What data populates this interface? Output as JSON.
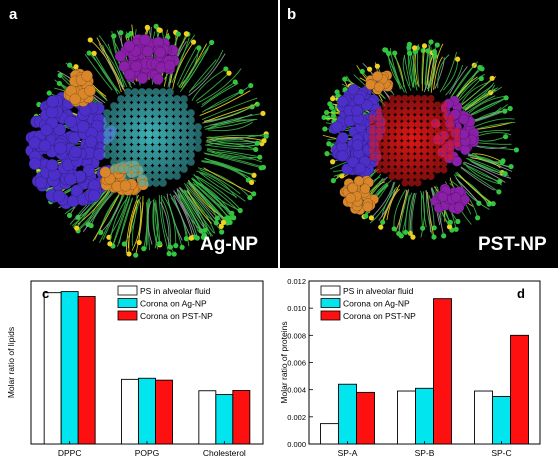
{
  "panels": {
    "a": {
      "letter": "a",
      "label": "Ag-NP"
    },
    "b": {
      "letter": "b",
      "label": "PST-NP"
    }
  },
  "colors": {
    "white_bar": "#ffffff",
    "cyan_bar": "#00e5ee",
    "red_bar": "#ff1010",
    "ag_core": "#3fb3b8",
    "pst_core": "#e01818",
    "lipid_green": "#3cb84a",
    "protein_blue": "#4c2ec8",
    "protein_orange": "#d9872a",
    "protein_purple": "#8a1fa8",
    "head_yellow": "#f0d020"
  },
  "chart_data": [
    {
      "id": "c",
      "type": "bar",
      "title": "",
      "xlabel": "",
      "ylabel": "Molar ratio of lipids",
      "categories": [
        "DPPC",
        "POPG",
        "Cholesterol"
      ],
      "series": [
        {
          "name": "PS in alveolar fluid",
          "values": [
            0.557,
            0.238,
            0.196
          ]
        },
        {
          "name": "Corona on Ag-NP",
          "values": [
            0.561,
            0.242,
            0.182
          ]
        },
        {
          "name": "Corona on PST-NP",
          "values": [
            0.543,
            0.235,
            0.197
          ]
        }
      ],
      "ylim": [
        0,
        0.6
      ],
      "yticks": [],
      "legend": "top-right",
      "grid": false
    },
    {
      "id": "d",
      "type": "bar",
      "title": "",
      "xlabel": "",
      "ylabel": "Molar ratio of proteins",
      "categories": [
        "SP-A",
        "SP-B",
        "SP-C"
      ],
      "series": [
        {
          "name": "PS in alveolar fluid",
          "values": [
            0.0015,
            0.0039,
            0.0039
          ]
        },
        {
          "name": "Corona on Ag-NP",
          "values": [
            0.0044,
            0.0041,
            0.0035
          ]
        },
        {
          "name": "Corona on PST-NP",
          "values": [
            0.0038,
            0.0107,
            0.008
          ]
        }
      ],
      "ylim": [
        0,
        0.012
      ],
      "yticks": [
        "0.000",
        "0.002",
        "0.004",
        "0.006",
        "0.008",
        "0.010",
        "0.012"
      ],
      "legend": "top-left",
      "grid": false
    }
  ]
}
